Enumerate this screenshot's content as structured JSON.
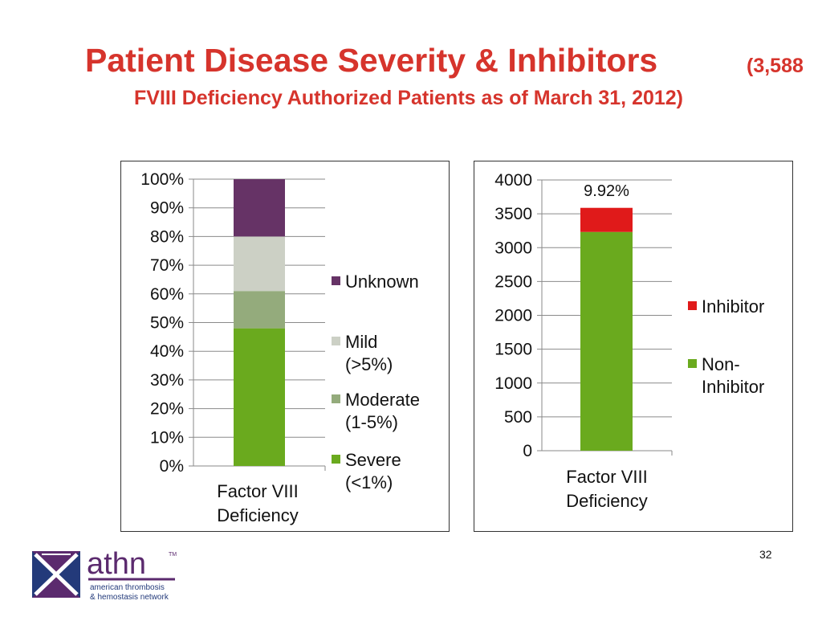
{
  "slide": {
    "title": "Patient Disease Severity & Inhibitors",
    "title_count": "(3,588",
    "subtitle": "FVIII Deficiency Authorized Patients as of March 31, 2012)",
    "page_number": "32"
  },
  "logo": {
    "name": "athn",
    "trademark": "TM",
    "line1": "american thrombosis",
    "line2": "& hemostasis network",
    "colors": {
      "purple": "#5b2a6e",
      "navy": "#233a7a"
    }
  },
  "chart_data": [
    {
      "type": "bar",
      "stacked": true,
      "categories": [
        "Factor VIII Deficiency"
      ],
      "category_lines": [
        "Factor VIII",
        "Deficiency"
      ],
      "series": [
        {
          "name": "Severe (<1%)",
          "legend_lines": [
            "Severe",
            "(<1%)"
          ],
          "values": [
            48
          ],
          "color": "#6aaa1e"
        },
        {
          "name": "Moderate (1-5%)",
          "legend_lines": [
            "Moderate",
            "(1-5%)"
          ],
          "values": [
            13
          ],
          "color": "#94ab7c"
        },
        {
          "name": "Mild (>5%)",
          "legend_lines": [
            "Mild",
            "(>5%)"
          ],
          "values": [
            19
          ],
          "color": "#ccd0c5"
        },
        {
          "name": "Unknown",
          "legend_lines": [
            "Unknown"
          ],
          "values": [
            20
          ],
          "color": "#663366"
        }
      ],
      "ylim": [
        0,
        100
      ],
      "yticks": [
        0,
        10,
        20,
        30,
        40,
        50,
        60,
        70,
        80,
        90,
        100
      ],
      "ytick_labels": [
        "0%",
        "10%",
        "20%",
        "30%",
        "40%",
        "50%",
        "60%",
        "70%",
        "80%",
        "90%",
        "100%"
      ],
      "grid": true,
      "legend_position": "right"
    },
    {
      "type": "bar",
      "stacked": true,
      "categories": [
        "Factor VIII Deficiency"
      ],
      "category_lines": [
        "Factor VIII",
        "Deficiency"
      ],
      "series": [
        {
          "name": "Non-Inhibitor",
          "legend_lines": [
            "Non-",
            "Inhibitor"
          ],
          "values": [
            3232
          ],
          "color": "#6aaa1e"
        },
        {
          "name": "Inhibitor",
          "legend_lines": [
            "Inhibitor"
          ],
          "values": [
            356
          ],
          "color": "#e01a1a"
        }
      ],
      "annotation": "9.92%",
      "ylim": [
        0,
        4000
      ],
      "yticks": [
        0,
        500,
        1000,
        1500,
        2000,
        2500,
        3000,
        3500,
        4000
      ],
      "ytick_labels": [
        "0",
        "500",
        "1000",
        "1500",
        "2000",
        "2500",
        "3000",
        "3500",
        "4000"
      ],
      "grid": true,
      "legend_position": "right"
    }
  ]
}
